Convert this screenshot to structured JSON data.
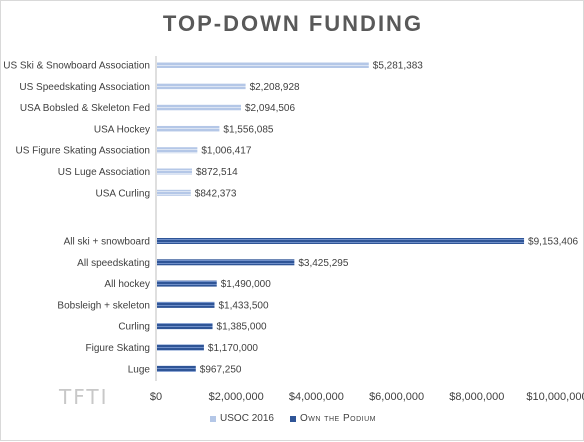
{
  "chart_data": {
    "type": "bar",
    "orientation": "horizontal",
    "title": "TOP-DOWN FUNDING",
    "watermark": "TFTI",
    "xlim": [
      0,
      10000000
    ],
    "x_ticks": [
      0,
      2000000,
      4000000,
      6000000,
      8000000,
      10000000
    ],
    "x_tick_labels": [
      "$0",
      "$2,000,000",
      "$4,000,000",
      "$6,000,000",
      "$8,000,000",
      "$10,000,000"
    ],
    "grid": false,
    "legend_position": "bottom",
    "series": [
      {
        "name": "USOC 2016",
        "color": "#b4c7e7",
        "categories": [
          "US Ski & Snowboard Association",
          "US Speedskating Association",
          "USA Bobsled & Skeleton Fed",
          "USA Hockey",
          "US Figure Skating Association",
          "US Luge Association",
          "USA Curling"
        ],
        "values": [
          5281383,
          2208928,
          2094506,
          1556085,
          1006417,
          872514,
          842373
        ],
        "value_labels": [
          "$5,281,383",
          "$2,208,928",
          "$2,094,506",
          "$1,556,085",
          "$1,006,417",
          "$872,514",
          "$842,373"
        ]
      },
      {
        "name": "Own the Podium",
        "color": "#2f5597",
        "categories": [
          "All ski + snowboard",
          "All speedskating",
          "All hockey",
          "Bobsleigh + skeleton",
          "Curling",
          "Figure Skating",
          "Luge"
        ],
        "values": [
          9153406,
          3425295,
          1490000,
          1433500,
          1385000,
          1170000,
          967250
        ],
        "value_labels": [
          "$9,153,406",
          "$3,425,295",
          "$1,490,000",
          "$1,433,500",
          "$1,385,000",
          "$1,170,000",
          "$967,250"
        ]
      }
    ]
  }
}
